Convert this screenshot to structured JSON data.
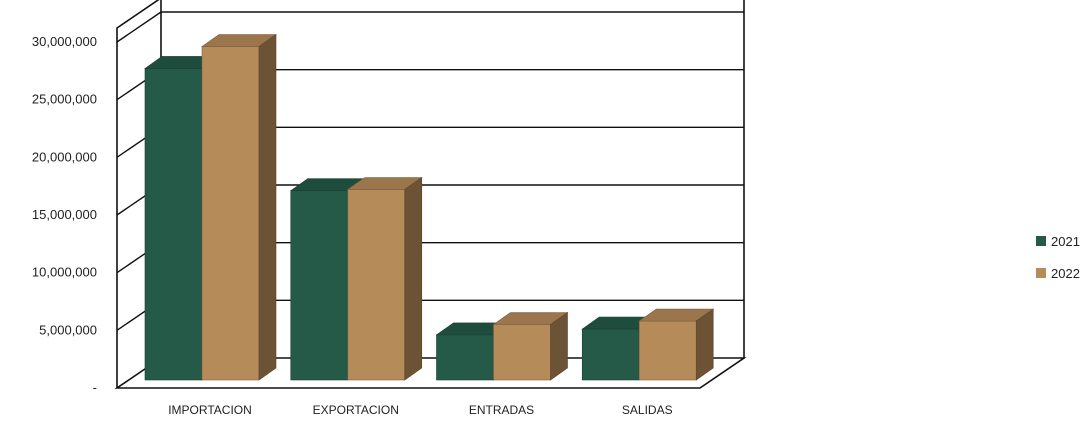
{
  "chart_data": {
    "type": "bar",
    "categories": [
      "IMPORTACION",
      "EXPORTACION",
      "ENTRADAS",
      "SALIDAS"
    ],
    "series": [
      {
        "name": "2021",
        "values": [
          28400000,
          17800000,
          5300000,
          5800000
        ],
        "color": "#255a48"
      },
      {
        "name": "2022",
        "values": [
          30300000,
          17900000,
          6200000,
          6500000
        ],
        "color": "#b68b5a"
      }
    ],
    "ylim": [
      0,
      30000000
    ],
    "yticks": [
      0,
      5000000,
      10000000,
      15000000,
      20000000,
      25000000,
      30000000
    ],
    "ytick_labels": [
      "-",
      "5,000,000",
      "10,000,000",
      "15,000,000",
      "20,000,000",
      "25,000,000",
      "30,000,000"
    ],
    "grid": true,
    "legend_position": "right",
    "style": "3d"
  }
}
